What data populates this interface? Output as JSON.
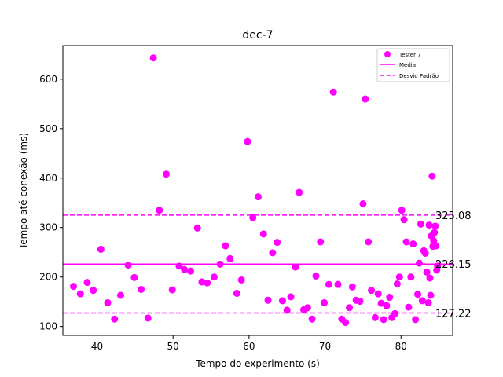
{
  "chart_data": {
    "type": "scatter",
    "title": "dec-7",
    "xlabel": "Tempo do experimento (s)",
    "ylabel": "Tempo até conexão (ms)",
    "xlim": [
      35.5,
      86.8
    ],
    "ylim": [
      82,
      668
    ],
    "xticks": [
      40,
      50,
      60,
      70,
      80
    ],
    "yticks": [
      100,
      200,
      300,
      400,
      500,
      600
    ],
    "grid": false,
    "legend_position": "top-right",
    "colors": {
      "points": "#ff00ff",
      "lines": "#ff00ff"
    },
    "series": [
      {
        "name": "Tester 7",
        "points": [
          [
            36.9,
            181
          ],
          [
            37.8,
            166
          ],
          [
            38.7,
            189
          ],
          [
            39.5,
            173
          ],
          [
            40.5,
            256
          ],
          [
            41.4,
            148
          ],
          [
            42.3,
            115
          ],
          [
            43.1,
            163
          ],
          [
            44.1,
            224
          ],
          [
            44.9,
            199
          ],
          [
            45.8,
            175
          ],
          [
            46.7,
            117
          ],
          [
            47.4,
            643
          ],
          [
            48.2,
            335
          ],
          [
            49.1,
            408
          ],
          [
            49.9,
            174
          ],
          [
            50.8,
            222
          ],
          [
            51.5,
            215
          ],
          [
            52.3,
            212
          ],
          [
            53.2,
            299
          ],
          [
            53.8,
            190
          ],
          [
            54.5,
            188
          ],
          [
            55.4,
            200
          ],
          [
            56.2,
            226
          ],
          [
            56.9,
            263
          ],
          [
            57.5,
            237
          ],
          [
            58.4,
            167
          ],
          [
            59.0,
            194
          ],
          [
            59.8,
            474
          ],
          [
            60.5,
            320
          ],
          [
            61.2,
            362
          ],
          [
            61.9,
            287
          ],
          [
            62.5,
            153
          ],
          [
            63.1,
            249
          ],
          [
            63.7,
            270
          ],
          [
            64.4,
            152
          ],
          [
            65.0,
            133
          ],
          [
            65.5,
            160
          ],
          [
            66.1,
            220
          ],
          [
            66.6,
            371
          ],
          [
            67.2,
            134
          ],
          [
            67.7,
            138
          ],
          [
            68.3,
            115
          ],
          [
            68.8,
            202
          ],
          [
            69.4,
            271
          ],
          [
            69.9,
            148
          ],
          [
            70.5,
            185
          ],
          [
            71.1,
            574
          ],
          [
            71.7,
            185
          ],
          [
            72.2,
            115
          ],
          [
            72.7,
            108
          ],
          [
            73.2,
            138
          ],
          [
            73.6,
            180
          ],
          [
            74.1,
            153
          ],
          [
            74.6,
            151
          ],
          [
            75.0,
            348
          ],
          [
            75.3,
            560
          ],
          [
            75.7,
            271
          ],
          [
            76.1,
            173
          ],
          [
            76.6,
            118
          ],
          [
            77.0,
            166
          ],
          [
            77.4,
            147
          ],
          [
            77.7,
            114
          ],
          [
            78.1,
            142
          ],
          [
            78.5,
            159
          ],
          [
            78.8,
            118
          ],
          [
            79.2,
            126
          ],
          [
            79.5,
            186
          ],
          [
            79.8,
            200
          ],
          [
            80.1,
            335
          ],
          [
            80.4,
            316
          ],
          [
            80.7,
            271
          ],
          [
            81.0,
            139
          ],
          [
            81.3,
            200
          ],
          [
            81.6,
            267
          ],
          [
            81.9,
            114
          ],
          [
            82.2,
            165
          ],
          [
            82.4,
            228
          ],
          [
            82.6,
            307
          ],
          [
            82.8,
            152
          ],
          [
            83.0,
            253
          ],
          [
            83.2,
            248
          ],
          [
            83.4,
            210
          ],
          [
            83.6,
            148
          ],
          [
            83.7,
            305
          ],
          [
            83.8,
            198
          ],
          [
            83.9,
            163
          ],
          [
            84.0,
            283
          ],
          [
            84.1,
            404
          ],
          [
            84.2,
            262
          ],
          [
            84.3,
            273
          ],
          [
            84.4,
            290
          ],
          [
            84.5,
            303
          ],
          [
            84.6,
            263
          ],
          [
            84.7,
            214
          ],
          [
            84.8,
            222
          ]
        ]
      }
    ],
    "reference_lines": [
      {
        "name": "Média",
        "value": 226.15,
        "label": "226.15",
        "style": "solid"
      },
      {
        "name": "Desvio Padrão",
        "value": 325.08,
        "label": "325.08",
        "style": "dashed"
      },
      {
        "name": "Desvio Padrão",
        "value": 127.22,
        "label": "127.22",
        "style": "dashed"
      }
    ]
  }
}
